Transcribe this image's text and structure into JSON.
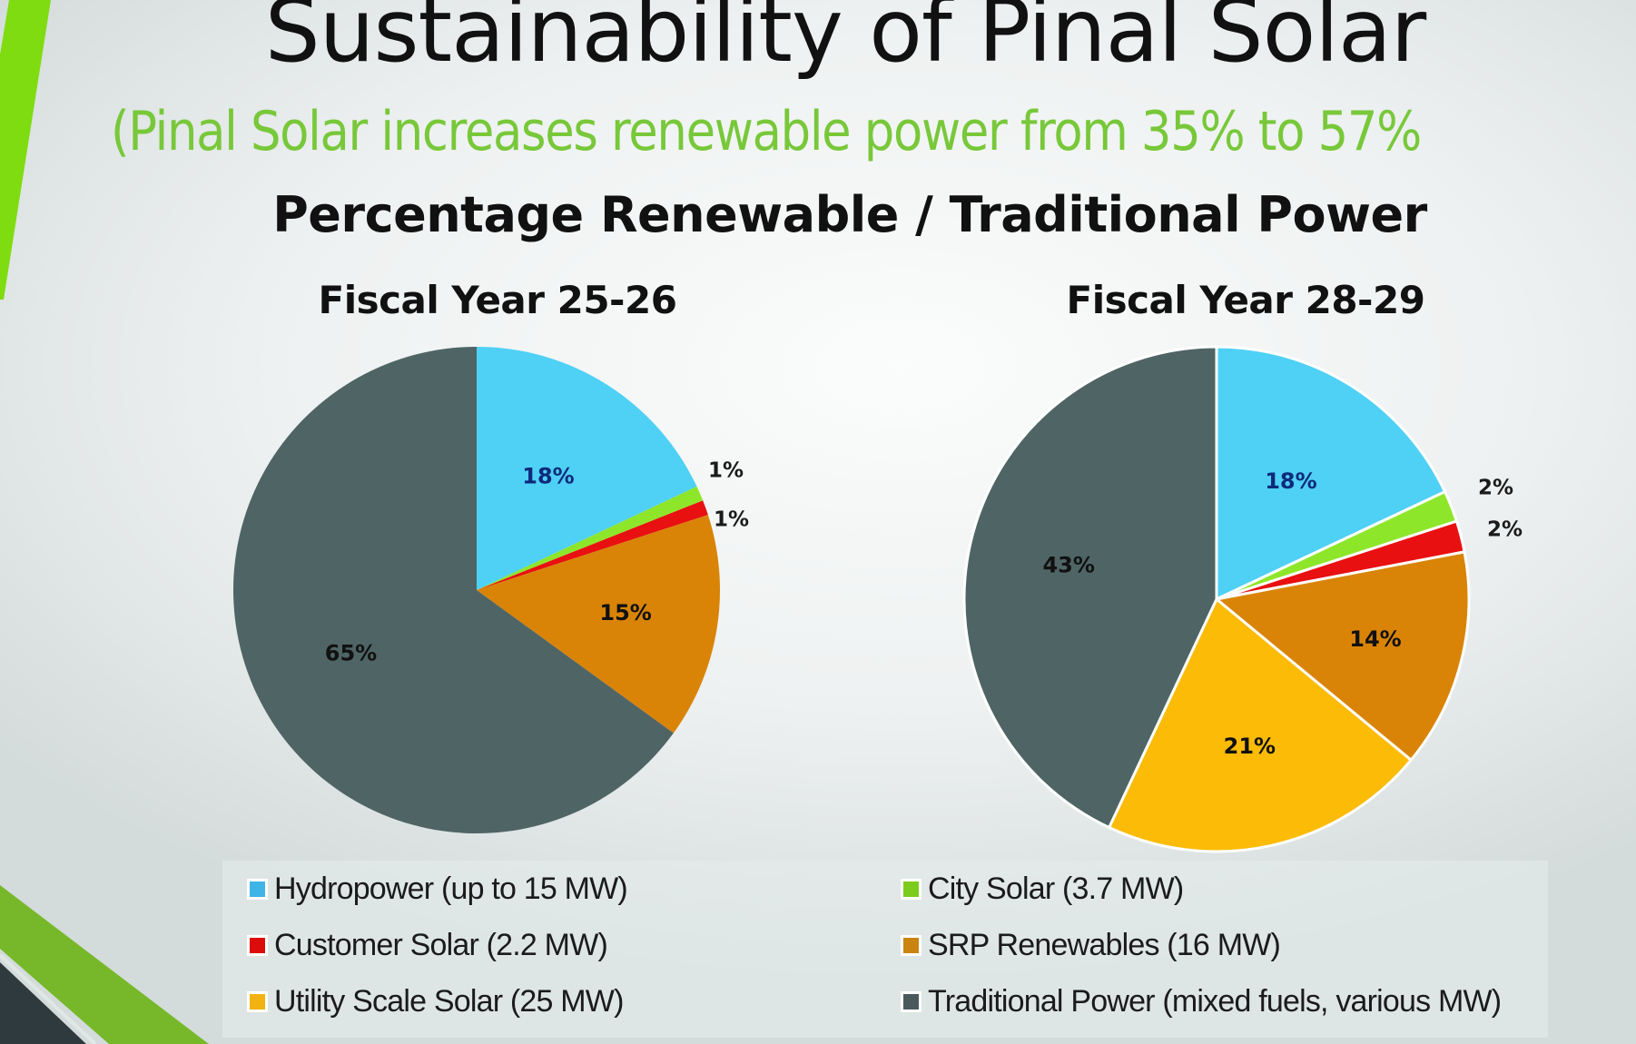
{
  "slide": {
    "title": "Sustainability of Pinal Solar",
    "subtitle": "(Pinal Solar increases renewable power from 35% to 57%",
    "heading": "Percentage Renewable / Traditional Power"
  },
  "colors": {
    "accent_green": "#78c83a",
    "hydropower": "#4fd0f5",
    "city_solar": "#8ee62a",
    "customer_solar": "#e81010",
    "srp_renewables": "#d98407",
    "utility_scale_solar": "#fbbb07",
    "traditional_power": "#4f6465"
  },
  "legend": [
    {
      "key": "hydropower",
      "label": "Hydropower (up to 15 MW)",
      "color": "#3fb4e6"
    },
    {
      "key": "city_solar",
      "label": "City Solar (3.7 MW)",
      "color": "#7ccc1e"
    },
    {
      "key": "customer_solar",
      "label": "Customer Solar (2.2 MW)",
      "color": "#dd0c0c"
    },
    {
      "key": "srp_renewables",
      "label": "SRP Renewables (16 MW)",
      "color": "#c98510"
    },
    {
      "key": "utility_scale_solar",
      "label": "Utility Scale Solar (25 MW)",
      "color": "#f2b212"
    },
    {
      "key": "traditional_power",
      "label": "Traditional Power (mixed fuels, various MW)",
      "color": "#4a5a5c"
    }
  ],
  "chart_data": [
    {
      "type": "pie",
      "title": "Fiscal Year 25-26",
      "categories": [
        "Hydropower (up to 15 MW)",
        "City Solar (3.7 MW)",
        "Customer Solar (2.2 MW)",
        "SRP Renewables (16 MW)",
        "Utility Scale Solar (25 MW)",
        "Traditional Power (mixed fuels, various MW)"
      ],
      "values": [
        18,
        1,
        1,
        15,
        0,
        65
      ],
      "labels": [
        "18%",
        "1%",
        "1%",
        "15%",
        "",
        "65%"
      ],
      "unit": "%",
      "start_angle": "12 o'clock",
      "direction": "clockwise",
      "legend": "bottom"
    },
    {
      "type": "pie",
      "title": "Fiscal Year 28-29",
      "categories": [
        "Hydropower (up to 15 MW)",
        "City Solar (3.7 MW)",
        "Customer Solar (2.2 MW)",
        "SRP Renewables (16 MW)",
        "Utility Scale Solar (25 MW)",
        "Traditional Power (mixed fuels, various MW)"
      ],
      "values": [
        18,
        2,
        2,
        14,
        21,
        43
      ],
      "labels": [
        "18%",
        "2%",
        "2%",
        "14%",
        "21%",
        "43%"
      ],
      "unit": "%",
      "start_angle": "12 o'clock",
      "direction": "clockwise",
      "legend": "bottom"
    }
  ]
}
